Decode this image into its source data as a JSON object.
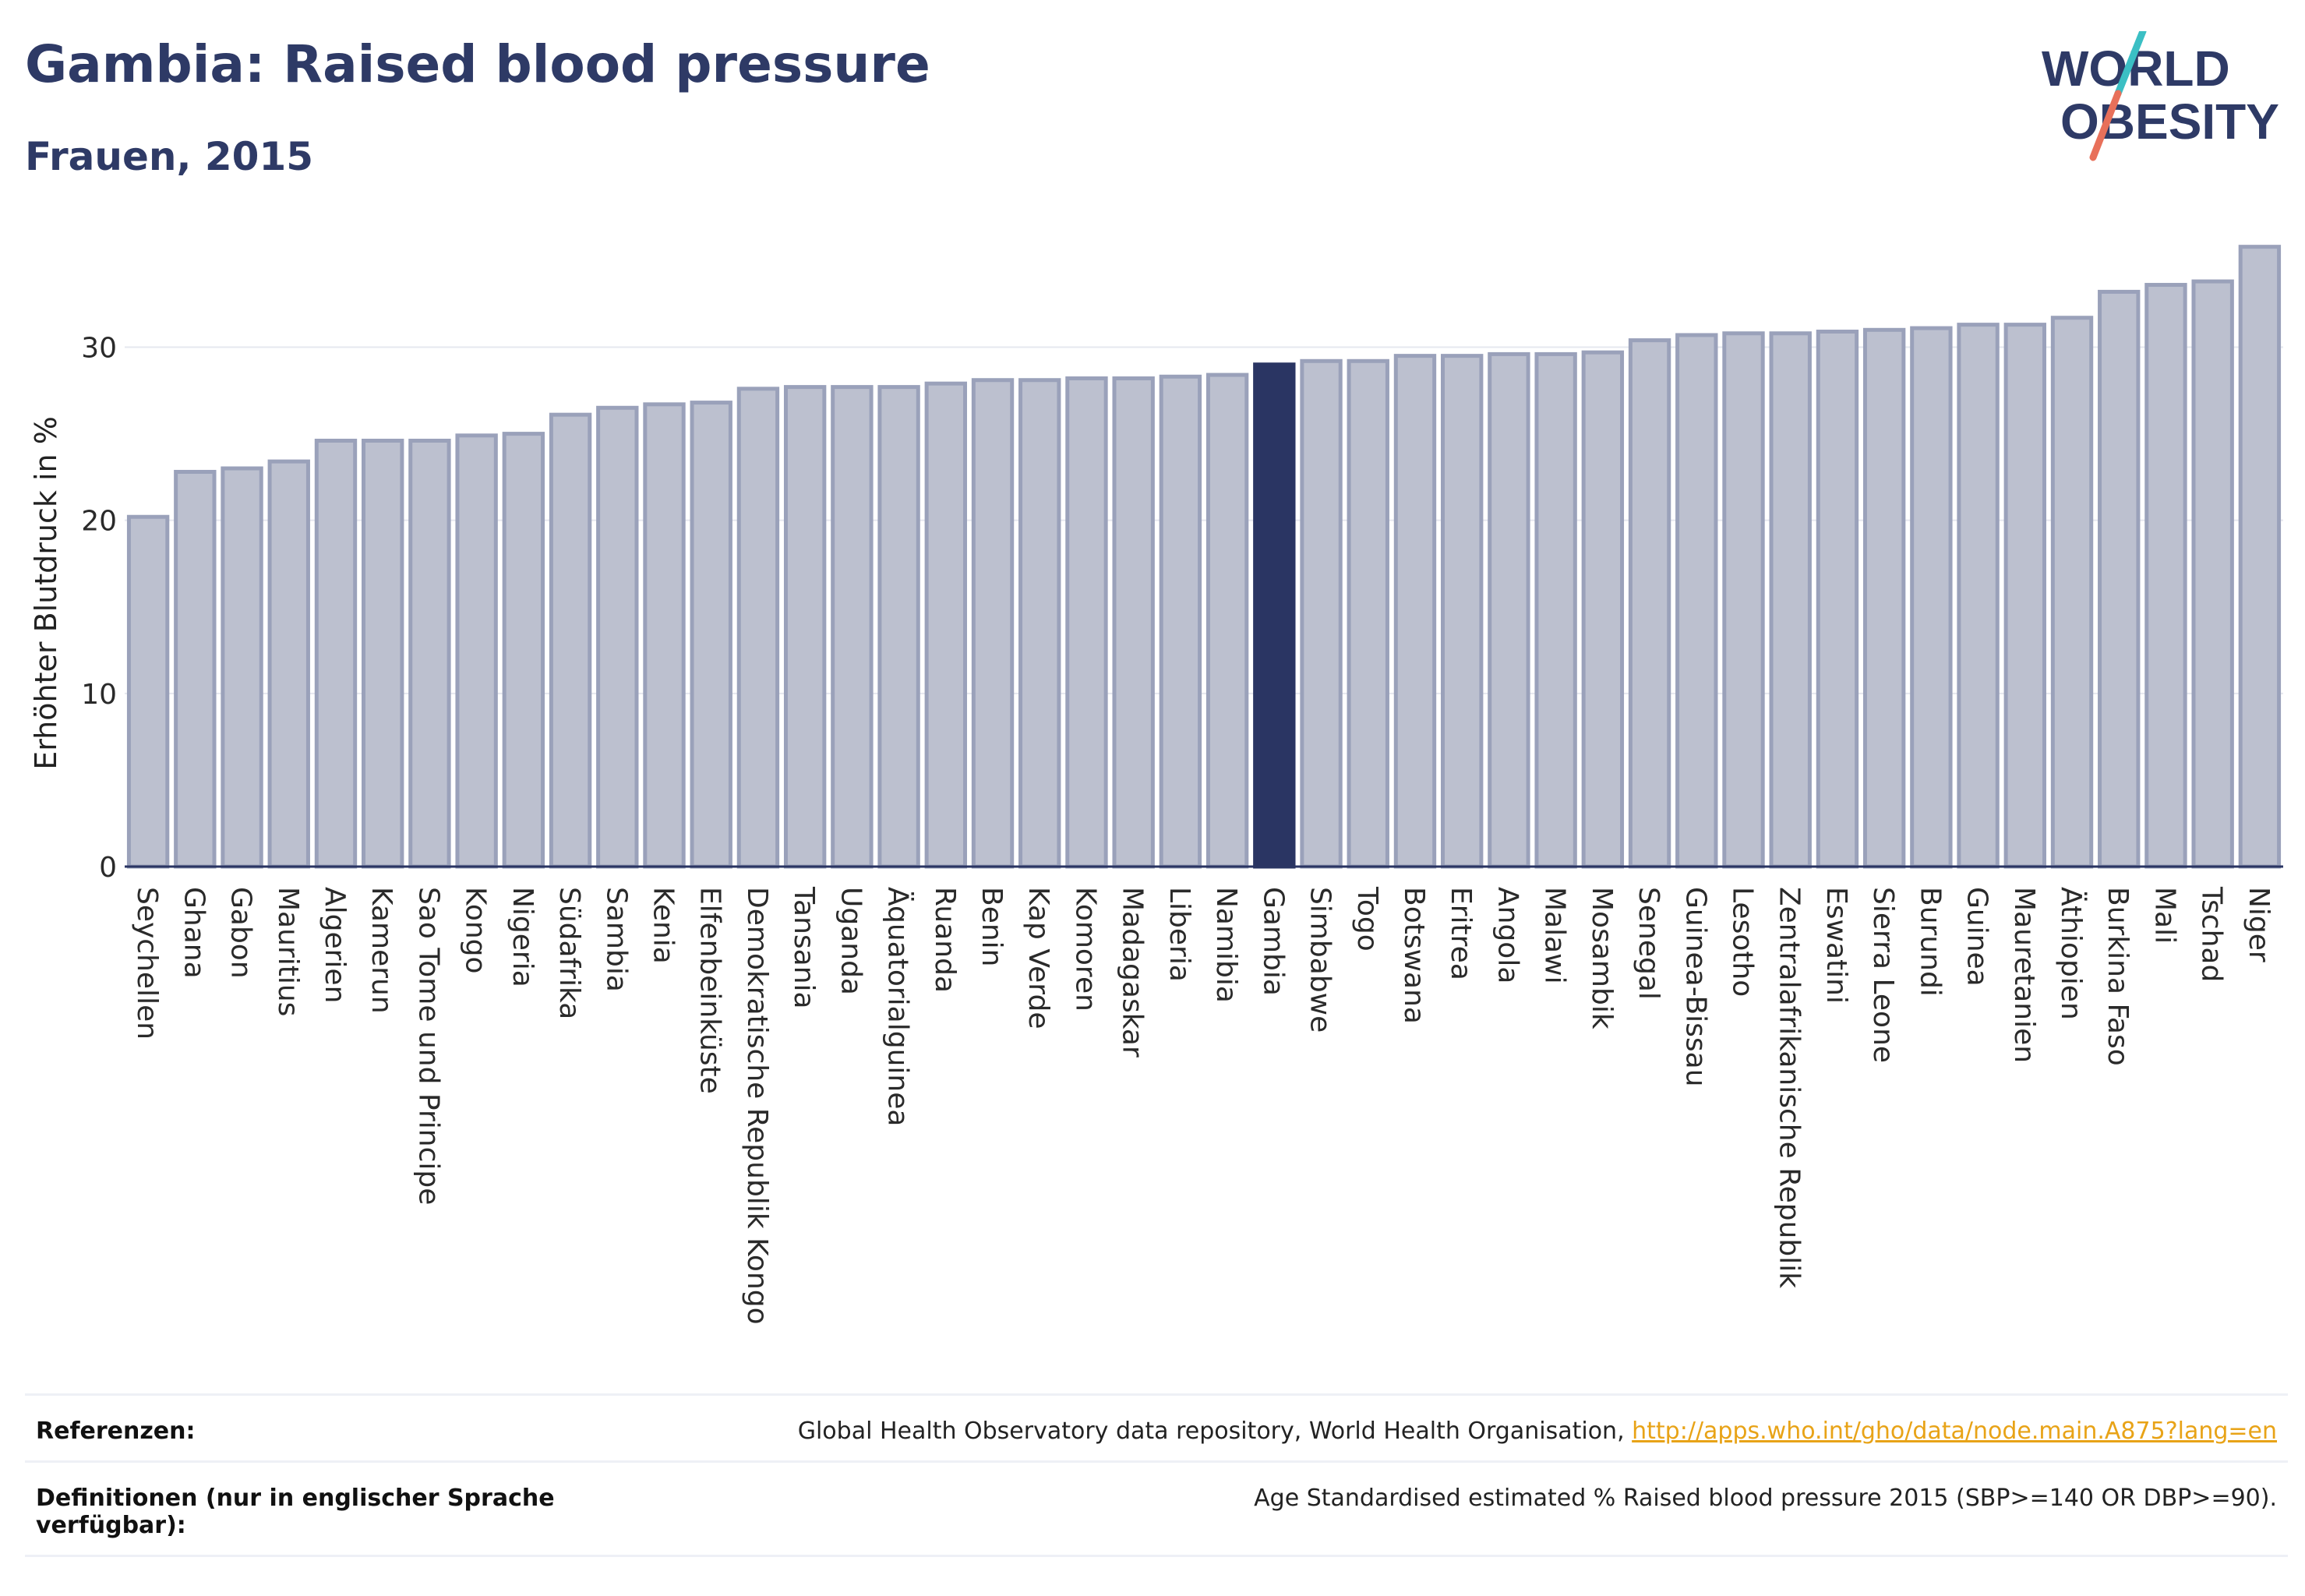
{
  "title": "Gambia: Raised blood pressure",
  "subtitle": "Frauen, 2015",
  "logo": {
    "line1": "WORLD",
    "line2": "OBESITY",
    "accent_colors": [
      "#3bbfc4",
      "#e8705a"
    ]
  },
  "colors": {
    "bar": "#bcc0cf",
    "bar_stroke": "#9aa1ba",
    "highlight": "#2a3563",
    "axis_text": "#2a2a2a",
    "grid": "#e6e8ef"
  },
  "chart_data": {
    "type": "bar",
    "ylabel": "Erhöhter Blutdruck in %",
    "ylim": [
      0,
      37
    ],
    "yticks": [
      0,
      10,
      20,
      30
    ],
    "highlight": "Gambia",
    "grid": true,
    "categories": [
      "Seychellen",
      "Ghana",
      "Gabon",
      "Mauritius",
      "Algerien",
      "Kamerun",
      "Sao Tome und Principe",
      "Kongo",
      "Nigeria",
      "Südafrika",
      "Sambia",
      "Kenia",
      "Elfenbeinküste",
      "Demokratische Republik Kongo",
      "Tansania",
      "Uganda",
      "Äquatorialguinea",
      "Ruanda",
      "Benin",
      "Kap Verde",
      "Komoren",
      "Madagaskar",
      "Liberia",
      "Namibia",
      "Gambia",
      "Simbabwe",
      "Togo",
      "Botswana",
      "Eritrea",
      "Angola",
      "Malawi",
      "Mosambik",
      "Senegal",
      "Guinea-Bissau",
      "Lesotho",
      "Zentralafrikanische Republik",
      "Eswatini",
      "Sierra Leone",
      "Burundi",
      "Guinea",
      "Mauretanien",
      "Äthiopien",
      "Burkina Faso",
      "Mali",
      "Tschad",
      "Niger"
    ],
    "values": [
      20.2,
      22.8,
      23.0,
      23.4,
      24.6,
      24.6,
      24.6,
      24.9,
      25.0,
      26.1,
      26.5,
      26.7,
      26.8,
      27.6,
      27.7,
      27.7,
      27.7,
      27.9,
      28.1,
      28.1,
      28.2,
      28.2,
      28.3,
      28.4,
      29.0,
      29.2,
      29.2,
      29.5,
      29.5,
      29.6,
      29.6,
      29.7,
      30.4,
      30.7,
      30.8,
      30.8,
      30.9,
      31.0,
      31.1,
      31.3,
      31.3,
      31.7,
      33.2,
      33.6,
      33.8,
      35.8
    ]
  },
  "footer": {
    "references_label": "Referenzen:",
    "references_text": "Global Health Observatory data repository, World Health Organisation, ",
    "references_link": "http://apps.who.int/gho/data/node.main.A875?lang=en",
    "definitions_label": "Definitionen (nur in englischer Sprache verfügbar):",
    "definitions_text": "Age Standardised estimated % Raised blood pressure 2015 (SBP>=140 OR DBP>=90)."
  }
}
